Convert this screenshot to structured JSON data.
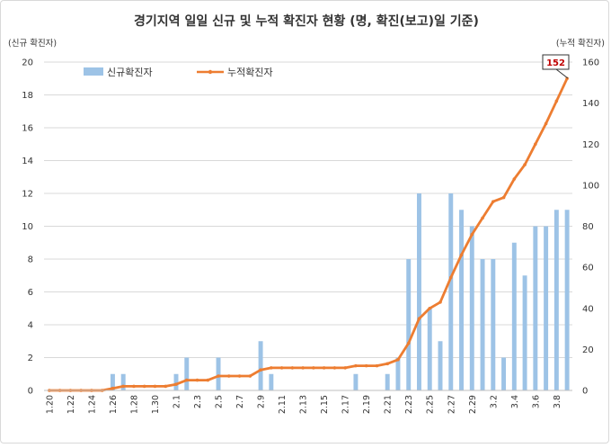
{
  "chart_data": {
    "type": "bar",
    "title": "경기지역 일일 신규 및 누적 확진자 현황 (명, 확진(보고)일 기준)",
    "ylabel_left": "(신규 확진자)",
    "ylabel_right": "(누적 확진자)",
    "ylim_left": [
      0,
      20
    ],
    "ylim_right": [
      0,
      160
    ],
    "yticks_left": [
      "0",
      "2",
      "4",
      "6",
      "8",
      "10",
      "12",
      "14",
      "16",
      "18",
      "20"
    ],
    "yticks_right": [
      "0",
      "20",
      "40",
      "60",
      "80",
      "100",
      "120",
      "140",
      "160"
    ],
    "x_tick_labels": [
      "1.20",
      "1.22",
      "1.24",
      "1.26",
      "1.28",
      "1.30",
      "2.1",
      "2.3",
      "2.5",
      "2.7",
      "2.9",
      "2.11",
      "2.13",
      "2.15",
      "2.17",
      "2.19",
      "2.21",
      "2.23",
      "2.25",
      "2.27",
      "2.29",
      "3.2",
      "3.4",
      "3.6",
      "3.8"
    ],
    "categories": [
      "1.20",
      "1.21",
      "1.22",
      "1.23",
      "1.24",
      "1.25",
      "1.26",
      "1.27",
      "1.28",
      "1.29",
      "1.30",
      "1.31",
      "2.1",
      "2.2",
      "2.3",
      "2.4",
      "2.5",
      "2.6",
      "2.7",
      "2.8",
      "2.9",
      "2.10",
      "2.11",
      "2.12",
      "2.13",
      "2.14",
      "2.15",
      "2.16",
      "2.17",
      "2.18",
      "2.19",
      "2.20",
      "2.21",
      "2.22",
      "2.23",
      "2.24",
      "2.25",
      "2.26",
      "2.27",
      "2.28",
      "2.29",
      "3.1",
      "3.2",
      "3.3",
      "3.4",
      "3.5",
      "3.6",
      "3.7",
      "3.8",
      "3.9"
    ],
    "series": [
      {
        "name": "신규확진자",
        "type": "bar",
        "axis": "left",
        "color": "#9dc3e6",
        "values": [
          0,
          0,
          0,
          0,
          0,
          0,
          1,
          1,
          0,
          0,
          0,
          0,
          1,
          2,
          0,
          0,
          2,
          0,
          0,
          0,
          3,
          1,
          0,
          0,
          0,
          0,
          0,
          0,
          0,
          1,
          0,
          0,
          1,
          2,
          8,
          12,
          5,
          3,
          12,
          11,
          10,
          8,
          8,
          2,
          9,
          7,
          10,
          10,
          11,
          11
        ]
      },
      {
        "name": "누적확진자",
        "type": "line",
        "axis": "right",
        "color": "#ed7d31",
        "values": [
          0,
          0,
          0,
          0,
          0,
          0,
          1,
          2,
          2,
          2,
          2,
          2,
          3,
          5,
          5,
          5,
          7,
          7,
          7,
          7,
          10,
          11,
          11,
          11,
          11,
          11,
          11,
          11,
          11,
          12,
          12,
          12,
          13,
          15,
          23,
          35,
          40,
          43,
          55,
          66,
          76,
          84,
          92,
          94,
          103,
          110,
          120,
          130,
          141,
          152
        ]
      }
    ],
    "annotation": "152",
    "legend_position": "top-left",
    "grid": true
  }
}
